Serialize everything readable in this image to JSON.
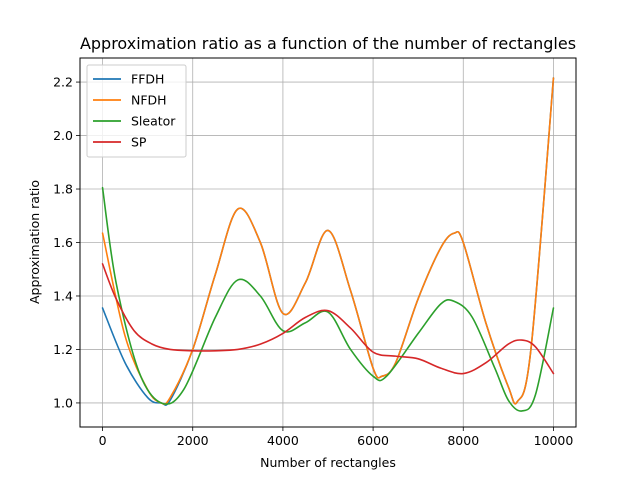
{
  "chart_data": {
    "type": "line",
    "title": "Approximation ratio as a function of the number of rectangles",
    "xlabel": "Number of rectangles",
    "ylabel": "Approximation ratio",
    "xlim": [
      -500,
      10500
    ],
    "ylim": [
      0.91,
      2.29
    ],
    "xticks": [
      0,
      2000,
      4000,
      6000,
      8000,
      10000
    ],
    "xtick_labels": [
      "0",
      "2000",
      "4000",
      "6000",
      "8000",
      "10000"
    ],
    "yticks": [
      1.0,
      1.2,
      1.4,
      1.6,
      1.8,
      2.0,
      2.2
    ],
    "ytick_labels": [
      "1.0",
      "1.2",
      "1.4",
      "1.6",
      "1.8",
      "2.0",
      "2.2"
    ],
    "grid": true,
    "legend_position": "top-left",
    "series": [
      {
        "name": "FFDH",
        "color": "#1f77b4",
        "x": [
          0,
          500,
          1000,
          1300,
          1500,
          2000,
          2500,
          3000,
          3500,
          4000,
          4500,
          5000,
          5500,
          6000,
          6200,
          6500,
          7000,
          7500,
          7800,
          8000,
          8500,
          9000,
          9200,
          9500,
          10000
        ],
        "y": [
          1.355,
          1.15,
          1.02,
          1.0,
          1.01,
          1.2,
          1.48,
          1.725,
          1.6,
          1.335,
          1.45,
          1.645,
          1.42,
          1.13,
          1.1,
          1.15,
          1.39,
          1.58,
          1.635,
          1.6,
          1.3,
          1.06,
          1.005,
          1.2,
          2.215
        ]
      },
      {
        "name": "NFDH",
        "color": "#ff7f0e",
        "x": [
          0,
          500,
          1000,
          1300,
          1500,
          2000,
          2500,
          3000,
          3500,
          4000,
          4500,
          5000,
          5500,
          6000,
          6200,
          6500,
          7000,
          7500,
          7800,
          8000,
          8500,
          9000,
          9200,
          9500,
          10000
        ],
        "y": [
          1.635,
          1.25,
          1.05,
          1.0,
          1.02,
          1.2,
          1.48,
          1.725,
          1.6,
          1.335,
          1.45,
          1.645,
          1.42,
          1.13,
          1.1,
          1.15,
          1.39,
          1.58,
          1.635,
          1.6,
          1.3,
          1.06,
          1.005,
          1.2,
          2.215
        ]
      },
      {
        "name": "Sleator",
        "color": "#2ca02c",
        "x": [
          0,
          300,
          800,
          1300,
          1800,
          2500,
          3000,
          3500,
          4000,
          4500,
          5000,
          5500,
          6000,
          6300,
          7000,
          7500,
          7800,
          8200,
          8700,
          9000,
          9300,
          9600,
          10000
        ],
        "y": [
          1.805,
          1.45,
          1.12,
          1.0,
          1.05,
          1.32,
          1.46,
          1.4,
          1.27,
          1.3,
          1.34,
          1.2,
          1.1,
          1.1,
          1.26,
          1.37,
          1.38,
          1.32,
          1.13,
          1.01,
          0.97,
          1.03,
          1.355
        ]
      },
      {
        "name": "SP",
        "color": "#d62728",
        "x": [
          0,
          300,
          700,
          1100,
          1500,
          2000,
          2500,
          3000,
          3500,
          4000,
          4500,
          5000,
          5500,
          6000,
          6500,
          7000,
          7500,
          8000,
          8500,
          9000,
          9300,
          9600,
          10000
        ],
        "y": [
          1.52,
          1.39,
          1.27,
          1.22,
          1.2,
          1.195,
          1.195,
          1.2,
          1.22,
          1.26,
          1.32,
          1.345,
          1.28,
          1.19,
          1.175,
          1.165,
          1.13,
          1.11,
          1.15,
          1.22,
          1.235,
          1.21,
          1.11
        ]
      }
    ]
  }
}
